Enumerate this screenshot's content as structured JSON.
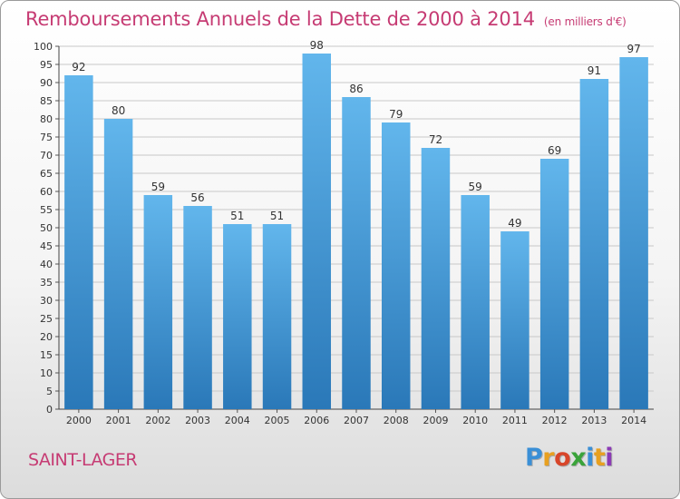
{
  "header": {
    "title": "Remboursements Annuels de la Dette de 2000 à 2014",
    "unit": "(en milliers d'€)"
  },
  "footer": {
    "commune": "SAINT-LAGER",
    "logo_letters": [
      "P",
      "r",
      "o",
      "x",
      "i",
      "t",
      "i"
    ],
    "logo_colors": [
      "#3a8fd6",
      "#e8a020",
      "#d8462a",
      "#3aa33a",
      "#3a8fd6",
      "#e8a020",
      "#8b3ab5"
    ]
  },
  "colors": {
    "bar_light": "#62b6ec",
    "bar_dark": "#2a78b8",
    "title": "#c63b73",
    "grid": "#c8c8c8"
  },
  "chart_data": {
    "type": "bar",
    "title": "Remboursements Annuels de la Dette de 2000 à 2014",
    "categories": [
      "2000",
      "2001",
      "2002",
      "2003",
      "2004",
      "2005",
      "2006",
      "2007",
      "2008",
      "2009",
      "2010",
      "2011",
      "2012",
      "2013",
      "2014"
    ],
    "values": [
      92,
      80,
      59,
      56,
      51,
      51,
      98,
      86,
      79,
      72,
      59,
      49,
      69,
      91,
      97
    ],
    "ylim": [
      0,
      100
    ],
    "yticks": [
      0,
      5,
      10,
      15,
      20,
      25,
      30,
      35,
      40,
      45,
      50,
      55,
      60,
      65,
      70,
      75,
      80,
      85,
      90,
      95,
      100
    ],
    "grid": true,
    "data_labels": true
  }
}
